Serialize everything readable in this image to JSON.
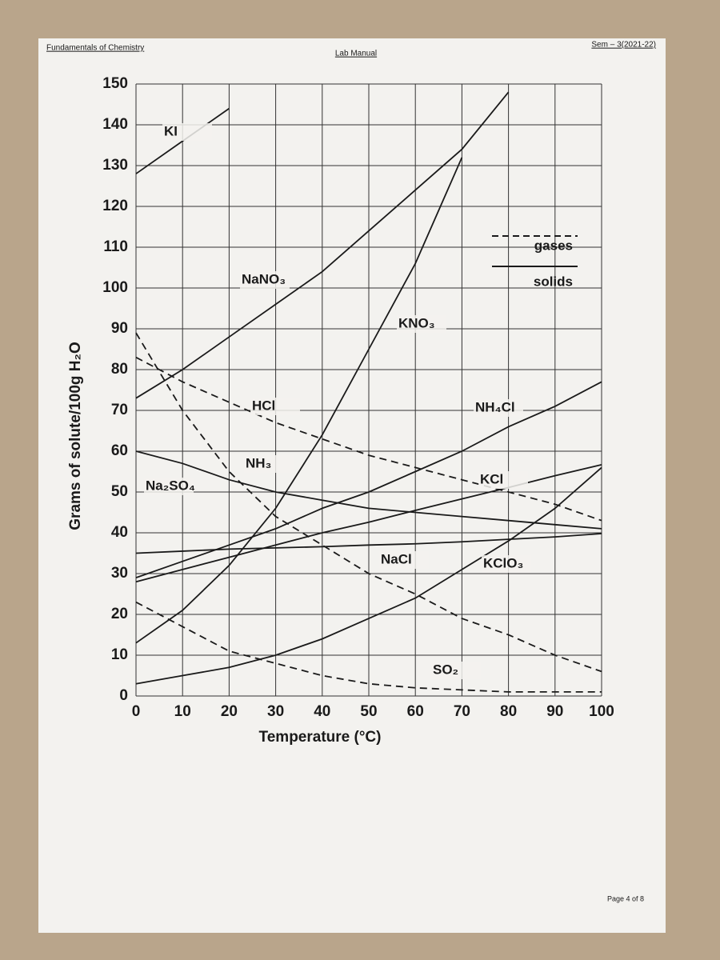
{
  "header": {
    "left": "Fundamentals of Chemistry",
    "center": "Lab Manual",
    "right": "Sem – 3(2021-22)"
  },
  "footer": "Page 4 of 8",
  "chart_data": {
    "type": "line",
    "x_label": "Temperature (°C)",
    "y_label": "Grams of solute/100g H₂O",
    "x": [
      0,
      10,
      20,
      30,
      40,
      50,
      60,
      70,
      80,
      90,
      100
    ],
    "xlim": [
      0,
      100
    ],
    "xticks": [
      0,
      10,
      20,
      30,
      40,
      50,
      60,
      70,
      80,
      90,
      100
    ],
    "ylim": [
      0,
      150
    ],
    "yticks": [
      0,
      10,
      20,
      30,
      40,
      50,
      60,
      70,
      80,
      90,
      100,
      110,
      120,
      130,
      140,
      150
    ],
    "grid": true,
    "color": "#1a1a1a",
    "line_styles": [
      {
        "label": "gases",
        "dashed": true
      },
      {
        "label": "solids",
        "dashed": false
      }
    ],
    "series": [
      {
        "name": "KI",
        "dashed": false,
        "values": [
          128,
          136,
          144,
          null,
          null,
          null,
          null,
          null,
          null,
          null,
          null
        ]
      },
      {
        "name": "NaNO₃",
        "dashed": false,
        "values": [
          73,
          80,
          88,
          96,
          104,
          114,
          124,
          134,
          148,
          null,
          null
        ]
      },
      {
        "name": "KNO₃",
        "dashed": false,
        "values": [
          13,
          21,
          32,
          46,
          64,
          85,
          106,
          132,
          null,
          null,
          null
        ]
      },
      {
        "name": "HCl",
        "dashed": true,
        "values": [
          83,
          77,
          72,
          67,
          63,
          59,
          56,
          53,
          50,
          47,
          43
        ]
      },
      {
        "name": "NH₃",
        "dashed": true,
        "values": [
          89,
          70,
          55,
          44,
          37,
          30,
          25,
          19,
          15,
          10,
          6
        ]
      },
      {
        "name": "Na₂SO₄",
        "dashed": false,
        "values": [
          60,
          57,
          53,
          50,
          48,
          46,
          45,
          44,
          43,
          42,
          41
        ]
      },
      {
        "name": "NaCl",
        "dashed": false,
        "values": [
          35,
          35.5,
          36,
          36.3,
          36.6,
          37,
          37.3,
          37.8,
          38.4,
          39,
          39.8
        ]
      },
      {
        "name": "KCl",
        "dashed": false,
        "values": [
          28,
          31,
          34,
          37,
          40,
          42.6,
          45.5,
          48.3,
          51.1,
          54,
          56.7
        ]
      },
      {
        "name": "NH₄Cl",
        "dashed": false,
        "values": [
          29,
          33,
          37,
          41,
          46,
          50,
          55,
          60,
          66,
          71,
          77
        ]
      },
      {
        "name": "KClO₃",
        "dashed": false,
        "values": [
          3,
          5,
          7,
          10,
          14,
          19,
          24,
          31,
          38,
          46,
          56
        ]
      },
      {
        "name": "SO₂",
        "dashed": true,
        "values": [
          23,
          17,
          11,
          8,
          5,
          3,
          2,
          1.5,
          1,
          1,
          1
        ]
      }
    ]
  }
}
